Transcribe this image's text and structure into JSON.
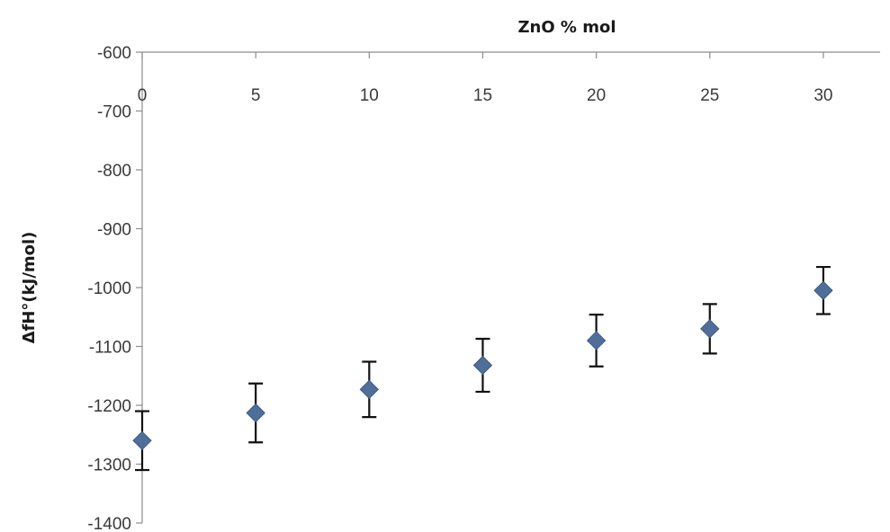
{
  "chart_data": {
    "type": "scatter",
    "title": "",
    "xlabel": "ZnO % mol",
    "ylabel": "ΔfH°(kJ/mol)",
    "xlim": [
      0,
      32.5
    ],
    "ylim": [
      -1400,
      -600
    ],
    "x_ticks": [
      0,
      5,
      10,
      15,
      20,
      25,
      30
    ],
    "y_ticks": [
      -600,
      -700,
      -800,
      -900,
      -1000,
      -1100,
      -1200,
      -1300,
      -1400
    ],
    "x_axis_position": "top",
    "grid": false,
    "legend": "none",
    "marker": "diamond",
    "marker_color": "#4f6f9a",
    "errorbar_color": "#111111",
    "series": [
      {
        "x": [
          0,
          5,
          10,
          15,
          20,
          25,
          30
        ],
        "y": [
          -1260,
          -1213,
          -1173,
          -1132,
          -1090,
          -1070,
          -1005
        ],
        "error": [
          50,
          50,
          47,
          45,
          44,
          42,
          40
        ]
      }
    ]
  }
}
